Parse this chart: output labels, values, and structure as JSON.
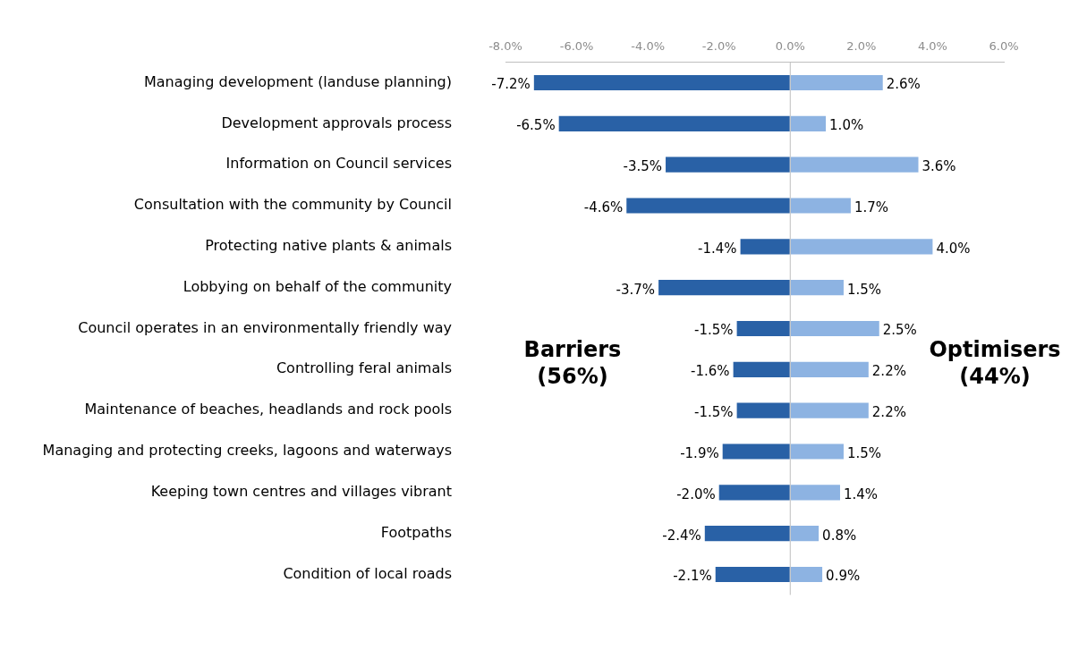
{
  "chart_data": {
    "type": "bar",
    "orientation": "horizontal",
    "stacked": true,
    "categories": [
      "Managing development (landuse planning)",
      "Development approvals process",
      "Information on Council services",
      "Consultation with the community by Council",
      "Protecting native plants & animals",
      "Lobbying on behalf of the community",
      "Council operates in an environmentally friendly way",
      "Controlling feral animals",
      "Maintenance of beaches, headlands and rock pools",
      "Managing and protecting creeks, lagoons and waterways",
      "Keeping town centres and villages vibrant",
      "Footpaths",
      "Condition of local roads"
    ],
    "series": [
      {
        "color": "#2961a6",
        "values": [
          -7.2,
          -6.5,
          -3.5,
          -4.6,
          -1.4,
          -3.7,
          -1.5,
          -1.6,
          -1.5,
          -1.9,
          -2.0,
          -2.4,
          -2.1
        ],
        "value_labels": [
          "-7.2%",
          "-6.5%",
          "-3.5%",
          "-4.6%",
          "-1.4%",
          "-3.7%",
          "-1.5%",
          "-1.6%",
          "-1.5%",
          "-1.9%",
          "-2.0%",
          "-2.4%",
          "-2.1%"
        ]
      },
      {
        "color": "#8db3e2",
        "values": [
          2.6,
          1.0,
          3.6,
          1.7,
          4.0,
          1.5,
          2.5,
          2.2,
          2.2,
          1.5,
          1.4,
          0.8,
          0.9
        ],
        "value_labels": [
          "2.6%",
          "1.0%",
          "3.6%",
          "1.7%",
          "4.0%",
          "1.5%",
          "2.5%",
          "2.2%",
          "2.2%",
          "1.5%",
          "1.4%",
          "0.8%",
          "0.9%"
        ]
      }
    ],
    "xlim": [
      -8,
      6
    ],
    "xticks": [
      {
        "value": -8,
        "label": "-8.0%"
      },
      {
        "value": -6,
        "label": "-6.0%"
      },
      {
        "value": -4,
        "label": "-4.0%"
      },
      {
        "value": -2,
        "label": "-2.0%"
      },
      {
        "value": 0,
        "label": "0.0%"
      },
      {
        "value": 2,
        "label": "2.0%"
      },
      {
        "value": 4,
        "label": "4.0%"
      },
      {
        "value": 6,
        "label": "6.0%"
      }
    ],
    "annotations": [
      "Barriers (56%)",
      "Optimisers (44%)"
    ],
    "ref_lines": [
      {
        "axis": "x",
        "value": 0,
        "color": "#bfbfbf"
      }
    ],
    "legend": false,
    "grid": false
  }
}
